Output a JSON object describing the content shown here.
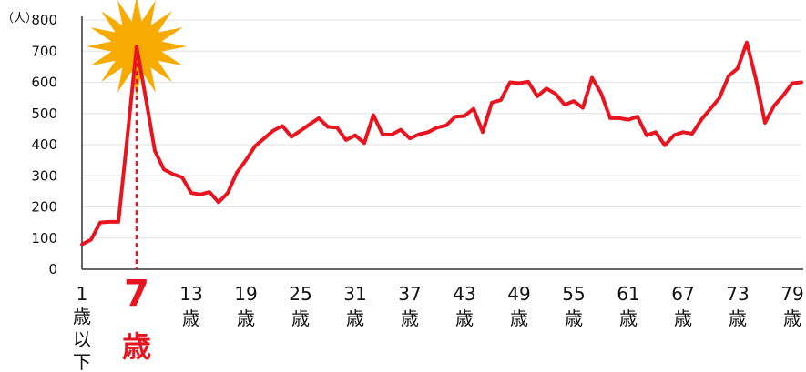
{
  "chart_data": {
    "type": "line",
    "y_unit": "（人）",
    "ylim": [
      0,
      800
    ],
    "yticks": [
      "0",
      "100",
      "200",
      "300",
      "400",
      "500",
      "600",
      "700",
      "800"
    ],
    "grid": true,
    "x_unit": "歳",
    "x_first_label": [
      "1",
      "歳",
      "以",
      "下"
    ],
    "x_labels": [
      {
        "age": 13,
        "label": "13"
      },
      {
        "age": 19,
        "label": "19"
      },
      {
        "age": 25,
        "label": "25"
      },
      {
        "age": 31,
        "label": "31"
      },
      {
        "age": 37,
        "label": "37"
      },
      {
        "age": 43,
        "label": "43"
      },
      {
        "age": 49,
        "label": "49"
      },
      {
        "age": 55,
        "label": "55"
      },
      {
        "age": 61,
        "label": "61"
      },
      {
        "age": 67,
        "label": "67"
      },
      {
        "age": 73,
        "label": "73"
      },
      {
        "age": 79,
        "label": "79"
      }
    ],
    "highlight": {
      "age": 7,
      "label": "7",
      "unit": "歳",
      "value": 715
    },
    "series_color": "#e8141f",
    "highlight_color": "#e8141f",
    "burst_color": "#f7ab00",
    "x": [
      1,
      2,
      3,
      4,
      5,
      6,
      7,
      8,
      9,
      10,
      11,
      12,
      13,
      14,
      15,
      16,
      17,
      18,
      19,
      20,
      21,
      22,
      23,
      24,
      25,
      26,
      27,
      28,
      29,
      30,
      31,
      32,
      33,
      34,
      35,
      36,
      37,
      38,
      39,
      40,
      41,
      42,
      43,
      44,
      45,
      46,
      47,
      48,
      49,
      50,
      51,
      52,
      53,
      54,
      55,
      56,
      57,
      58,
      59,
      60,
      61,
      62,
      63,
      64,
      65,
      66,
      67,
      68,
      69,
      70,
      71,
      72,
      73,
      74,
      75,
      76,
      77,
      78,
      79,
      80
    ],
    "values": [
      80,
      95,
      150,
      152,
      152,
      430,
      715,
      550,
      380,
      320,
      305,
      295,
      245,
      240,
      248,
      215,
      245,
      310,
      350,
      395,
      420,
      445,
      460,
      425,
      445,
      465,
      485,
      457,
      455,
      415,
      430,
      405,
      495,
      433,
      432,
      448,
      420,
      433,
      440,
      455,
      462,
      490,
      492,
      515,
      440,
      535,
      543,
      600,
      597,
      602,
      555,
      580,
      563,
      528,
      540,
      518,
      615,
      565,
      485,
      485,
      480,
      490,
      430,
      440,
      398,
      430,
      440,
      435,
      480,
      515,
      550,
      620,
      645,
      728,
      610,
      470,
      525,
      558,
      597,
      600
    ]
  }
}
